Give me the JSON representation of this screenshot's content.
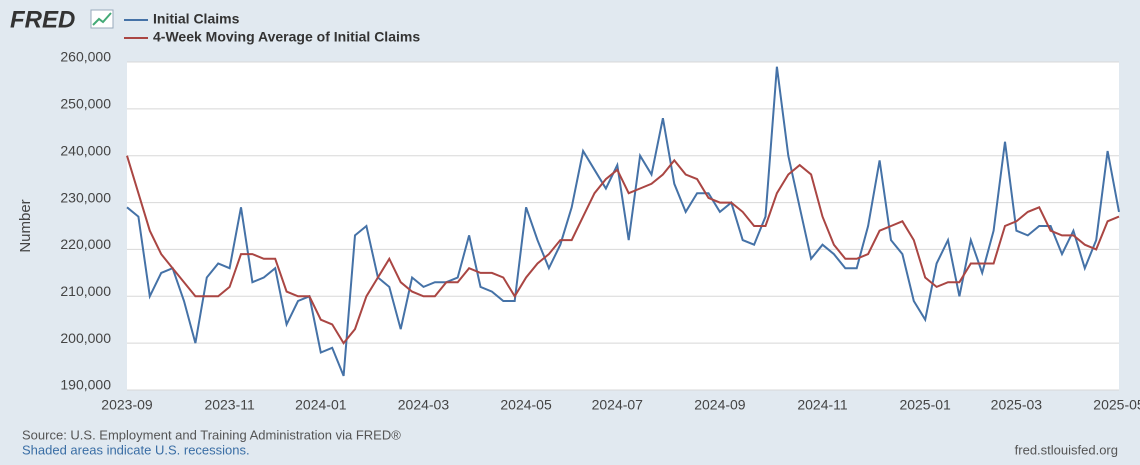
{
  "logo": "FRED",
  "chart_data": {
    "type": "line",
    "ylabel": "Number",
    "categories": [
      "2023-09",
      null,
      null,
      null,
      null,
      null,
      null,
      null,
      null,
      "2023-11",
      null,
      null,
      null,
      null,
      null,
      null,
      null,
      "2024-01",
      null,
      null,
      null,
      null,
      null,
      null,
      null,
      null,
      "2024-03",
      null,
      null,
      null,
      null,
      null,
      null,
      null,
      null,
      "2024-05",
      null,
      null,
      null,
      null,
      null,
      null,
      null,
      "2024-07",
      null,
      null,
      null,
      null,
      null,
      null,
      null,
      null,
      "2024-09",
      null,
      null,
      null,
      null,
      null,
      null,
      null,
      null,
      "2024-11",
      null,
      null,
      null,
      null,
      null,
      null,
      null,
      null,
      "2025-01",
      null,
      null,
      null,
      null,
      null,
      null,
      null,
      "2025-03",
      null,
      null,
      null,
      null,
      null,
      null,
      null,
      null,
      "2025-05"
    ],
    "series": [
      {
        "name": "Initial Claims",
        "color": "#4572a7",
        "values": [
          229000,
          227000,
          210000,
          215000,
          216000,
          209000,
          200000,
          214000,
          217000,
          216000,
          229000,
          213000,
          214000,
          216000,
          204000,
          209000,
          210000,
          198000,
          199000,
          193000,
          223000,
          225000,
          214000,
          212000,
          203000,
          214000,
          212000,
          213000,
          213000,
          214000,
          223000,
          212000,
          211000,
          209000,
          209000,
          229000,
          222000,
          216000,
          221000,
          229000,
          241000,
          237000,
          233000,
          238000,
          222000,
          240000,
          236000,
          248000,
          234000,
          228000,
          232000,
          232000,
          228000,
          230000,
          222000,
          221000,
          227000,
          259000,
          240000,
          229000,
          218000,
          221000,
          219000,
          216000,
          216000,
          225000,
          239000,
          222000,
          219000,
          209000,
          205000,
          217000,
          222000,
          210000,
          222000,
          215000,
          224000,
          243000,
          224000,
          223000,
          225000,
          225000,
          219000,
          224000,
          216000,
          222000,
          241000,
          228000
        ]
      },
      {
        "name": "4-Week Moving Average of Initial Claims",
        "color": "#aa4643",
        "values": [
          240000,
          232000,
          224000,
          219000,
          216000,
          213000,
          210000,
          210000,
          210000,
          212000,
          219000,
          219000,
          218000,
          218000,
          211000,
          210000,
          210000,
          205000,
          204000,
          200000,
          203000,
          210000,
          214000,
          218000,
          213000,
          211000,
          210000,
          210000,
          213000,
          213000,
          216000,
          215000,
          215000,
          214000,
          210000,
          214000,
          217000,
          219000,
          222000,
          222000,
          227000,
          232000,
          235000,
          237000,
          232000,
          233000,
          234000,
          236000,
          239000,
          236000,
          235000,
          231000,
          230000,
          230000,
          228000,
          225000,
          225000,
          232000,
          236000,
          238000,
          236000,
          227000,
          221000,
          218000,
          218000,
          219000,
          224000,
          225000,
          226000,
          222000,
          214000,
          212000,
          213000,
          213000,
          217000,
          217000,
          217000,
          225000,
          226000,
          228000,
          229000,
          224000,
          223000,
          223000,
          221000,
          220000,
          226000,
          227000
        ]
      }
    ],
    "ylim": [
      190000,
      260000
    ],
    "yticks": [
      {
        "value": 190000,
        "label": "190,000"
      },
      {
        "value": 200000,
        "label": "200,000"
      },
      {
        "value": 210000,
        "label": "210,000"
      },
      {
        "value": 220000,
        "label": "220,000"
      },
      {
        "value": 230000,
        "label": "230,000"
      },
      {
        "value": 240000,
        "label": "240,000"
      },
      {
        "value": 250000,
        "label": "250,000"
      },
      {
        "value": 260000,
        "label": "260,000"
      }
    ],
    "grid": true
  },
  "footer": {
    "source": "Source: U.S. Employment and Training Administration via FRED®",
    "note": "Shaded areas indicate U.S. recessions.",
    "url": "fred.stlouisfed.org"
  }
}
